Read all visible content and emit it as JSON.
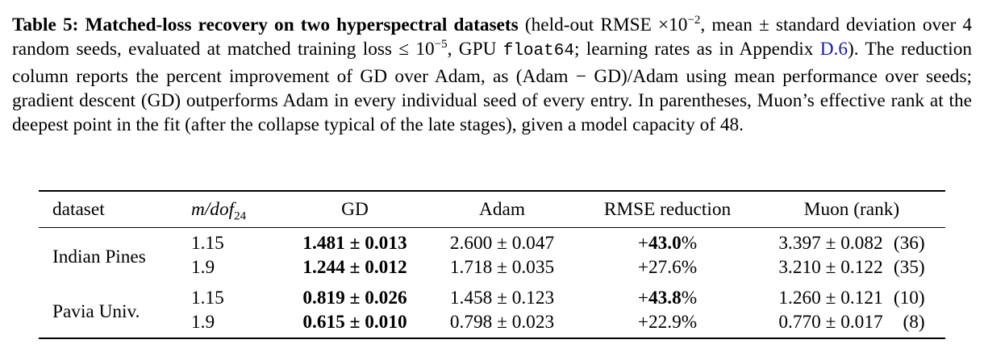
{
  "caption": {
    "label": "Table 5:",
    "title": "Matched-loss recovery on two hyperspectral datasets",
    "text1": " (held-out RMSE ×10",
    "exp1": "−2",
    "text2": ", mean ± standard deviation over 4 random seeds, evaluated at matched training loss ≤ 10",
    "exp2": "−5",
    "text3": ", GPU ",
    "code": "float64",
    "text4": "; learning rates as in Appendix ",
    "link": "D.6",
    "text5": "). The reduction column reports the percent improvement of GD over Adam, as (Adam − GD)/Adam using mean performance over seeds; gradient descent (GD) outperforms Adam in every individual seed of every entry. In parentheses, Muon’s effective rank at the deepest point in the fit (after the collapse typical of the late stages), given a model capacity of 48."
  },
  "table": {
    "columns": [
      "dataset",
      "m/dof",
      "GD",
      "Adam",
      "RMSE reduction",
      "Muon (rank)"
    ],
    "ratio_subscript": "24",
    "groups": [
      {
        "dataset": "Indian Pines",
        "rows": [
          {
            "ratio": "1.15",
            "gd": "1.481 ± 0.013",
            "adam": "2.600 ± 0.047",
            "reduction": {
              "sign": "+",
              "value": "43.0",
              "unit": "%"
            },
            "muon": "3.397 ± 0.082",
            "rank": "(36)"
          },
          {
            "ratio": "1.9",
            "gd": "1.244 ± 0.012",
            "adam": "1.718 ± 0.035",
            "reduction": {
              "sign": "+",
              "value": "27.6",
              "unit": "%"
            },
            "muon": "3.210 ± 0.122",
            "rank": "(35)"
          }
        ]
      },
      {
        "dataset": "Pavia Univ.",
        "rows": [
          {
            "ratio": "1.15",
            "gd": "0.819 ± 0.026",
            "adam": "1.458 ± 0.123",
            "reduction": {
              "sign": "+",
              "value": "43.8",
              "unit": "%"
            },
            "muon": "1.260 ± 0.121",
            "rank": "(10)"
          },
          {
            "ratio": "1.9",
            "gd": "0.615 ± 0.010",
            "adam": "0.798 ± 0.023",
            "reduction": {
              "sign": "+",
              "value": "22.9",
              "unit": "%"
            },
            "muon": "0.770 ± 0.017",
            "rank": "(8)"
          }
        ]
      }
    ]
  }
}
